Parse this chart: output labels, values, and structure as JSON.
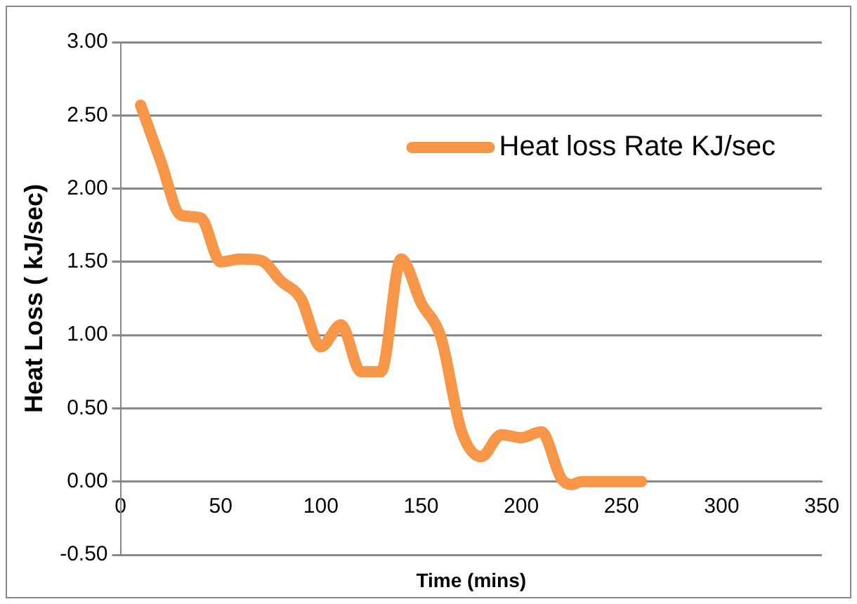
{
  "chart_data": {
    "type": "line",
    "xlabel": "Time (mins)",
    "ylabel": "Heat Loss ( kJ/sec)",
    "x": [
      10,
      20,
      30,
      40,
      50,
      60,
      70,
      80,
      90,
      100,
      110,
      120,
      130,
      140,
      150,
      160,
      170,
      180,
      190,
      200,
      210,
      220,
      225,
      230,
      240,
      250,
      260
    ],
    "series": [
      {
        "name": "Heat loss Rate KJ/sec",
        "color": "#f79646",
        "values": [
          2.57,
          2.19,
          1.82,
          1.8,
          1.5,
          1.52,
          1.51,
          1.37,
          1.25,
          0.92,
          1.07,
          0.75,
          0.75,
          1.52,
          1.22,
          0.98,
          0.35,
          0.17,
          0.32,
          0.3,
          0.34,
          0.02,
          -0.02,
          0,
          0,
          0,
          0
        ]
      }
    ],
    "xlim": [
      0,
      350
    ],
    "xticks": [
      0,
      50,
      100,
      150,
      200,
      250,
      300,
      350
    ],
    "ylim": [
      -0.5,
      3
    ],
    "yticks": [
      {
        "value": -0.5,
        "label": "-0.50"
      },
      {
        "value": 0,
        "label": "0.00"
      },
      {
        "value": 0.5,
        "label": "0.50"
      },
      {
        "value": 1,
        "label": "1.00"
      },
      {
        "value": 1.5,
        "label": "1.50"
      },
      {
        "value": 2,
        "label": "2.00"
      },
      {
        "value": 2.5,
        "label": "2.50"
      },
      {
        "value": 3,
        "label": "3.00"
      }
    ],
    "grid": "y",
    "legend": "top right",
    "marker": "none",
    "line_style": "solid"
  }
}
